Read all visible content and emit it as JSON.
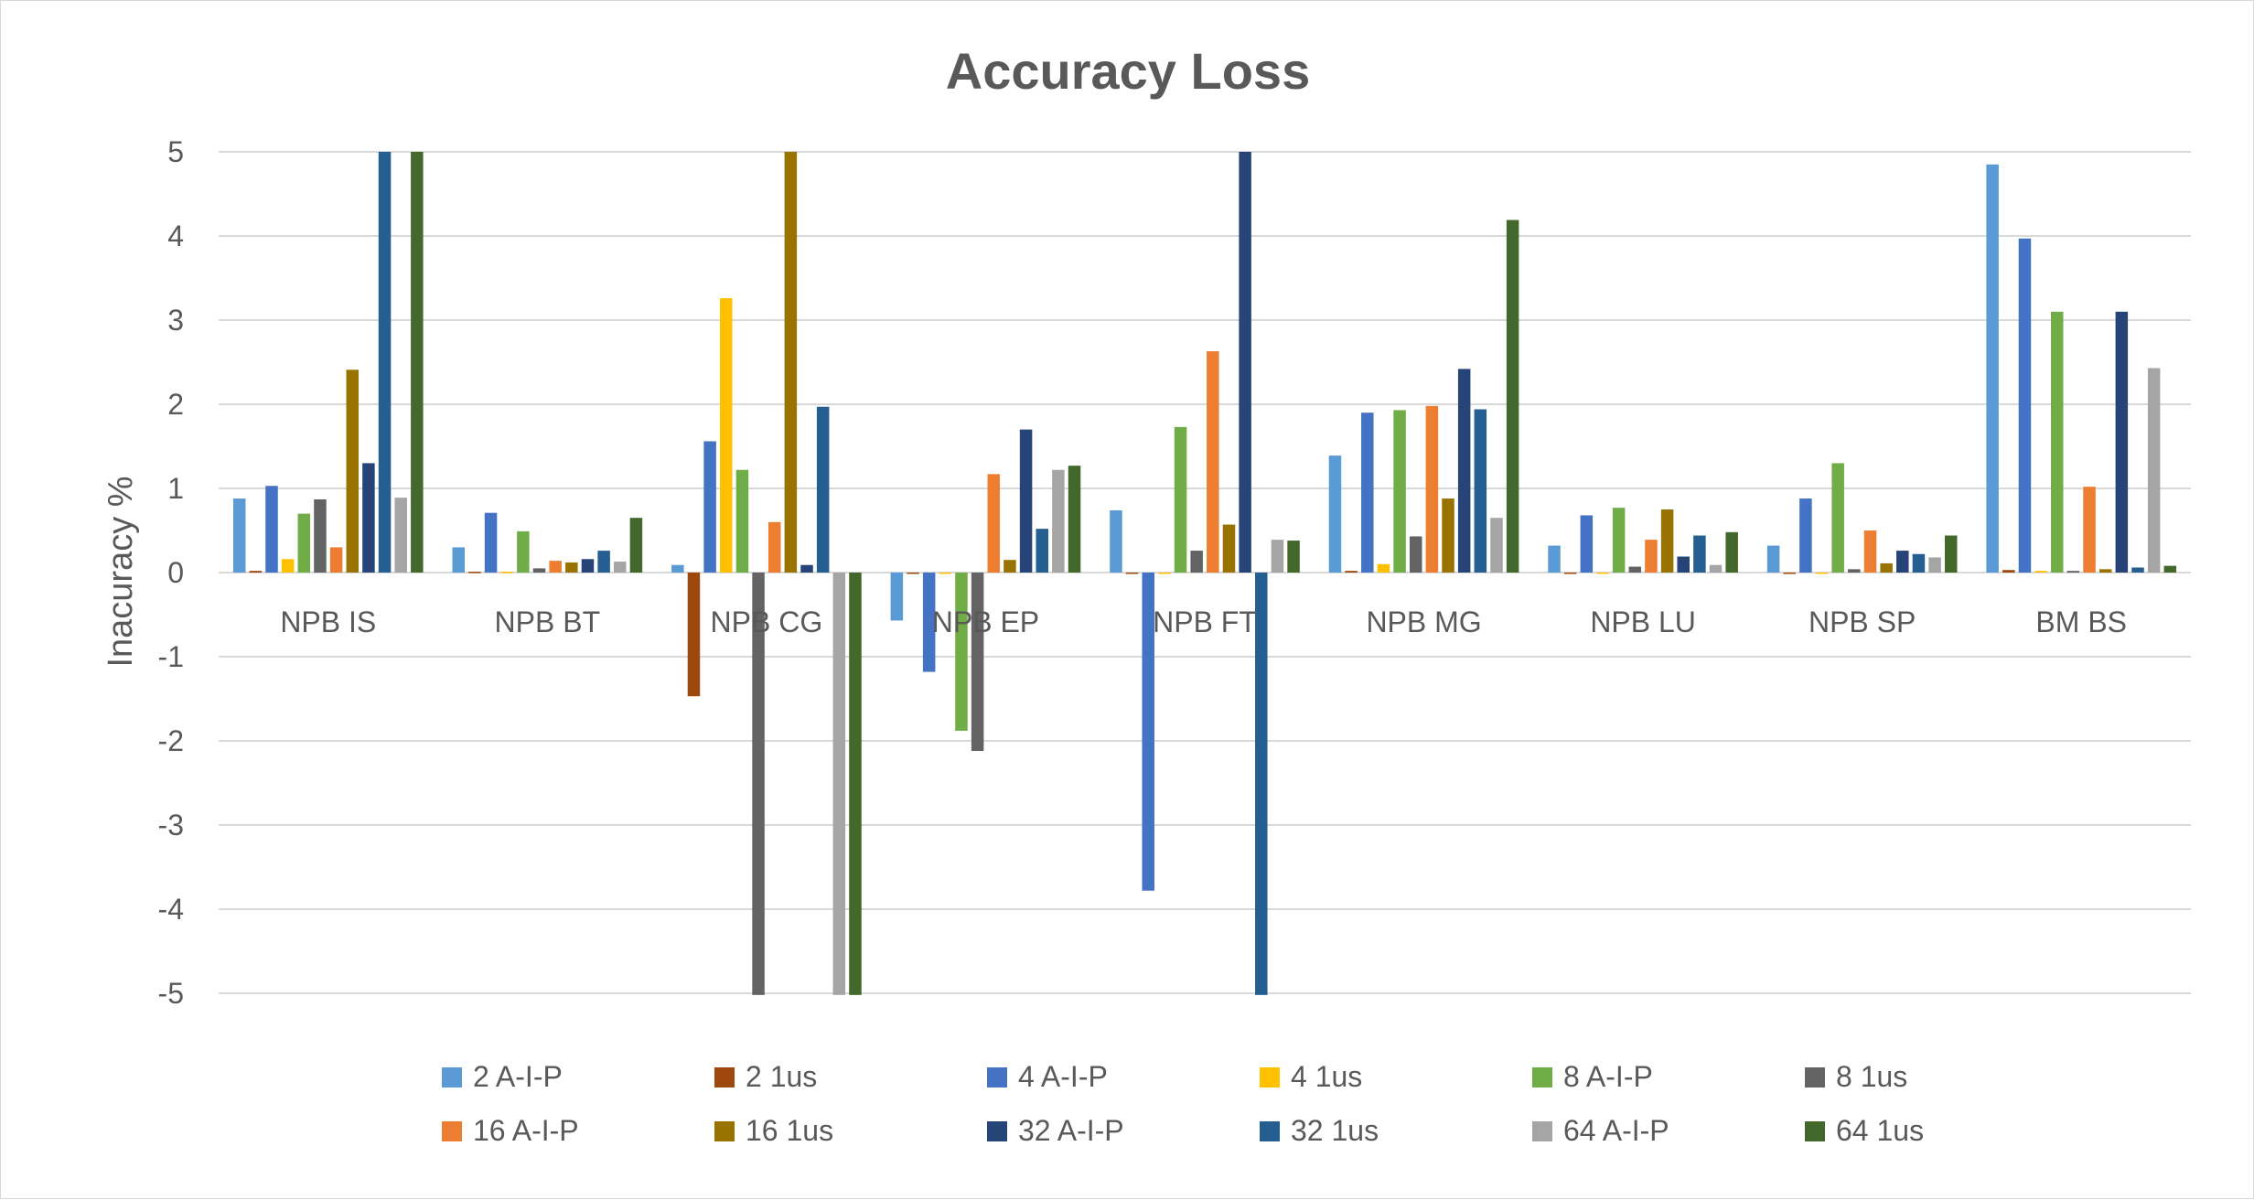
{
  "chart_data": {
    "type": "bar",
    "title": "Accuracy Loss",
    "xlabel": "",
    "ylabel": "Inacuracy %",
    "ylim": [
      -5,
      5
    ],
    "yticks": [
      "5",
      "4",
      "3",
      "2",
      "1",
      "0",
      "-1",
      "-2",
      "-3",
      "-4",
      "-5"
    ],
    "grid": true,
    "legend_position": "bottom",
    "categories": [
      "NPB IS",
      "NPB BT",
      "NPB CG",
      "NPB EP",
      "NPB FT",
      "NPB MG",
      "NPB LU",
      "NPB SP",
      "BM BS"
    ],
    "series": [
      {
        "name": "2 A-I-P",
        "color": "#5b9bd5",
        "values": [
          0.88,
          0.3,
          0.09,
          -0.57,
          0.74,
          1.39,
          0.32,
          0.32,
          4.85
        ]
      },
      {
        "name": "2 1us",
        "color": "#9e480e",
        "values": [
          0.02,
          0.01,
          -1.47,
          0.0,
          0.0,
          0.02,
          0.0,
          0.0,
          0.03
        ]
      },
      {
        "name": "4 A-I-P",
        "color": "#4472c4",
        "values": [
          1.03,
          0.71,
          1.56,
          -1.18,
          -3.78,
          1.9,
          0.68,
          0.88,
          3.97
        ]
      },
      {
        "name": "4 1us",
        "color": "#ffc000",
        "values": [
          0.16,
          0.01,
          3.26,
          0.0,
          0.0,
          0.1,
          0.0,
          0.0,
          0.02
        ]
      },
      {
        "name": "8 A-I-P",
        "color": "#70ad47",
        "values": [
          0.7,
          0.49,
          1.22,
          -1.88,
          1.73,
          1.93,
          0.77,
          1.3,
          3.1
        ]
      },
      {
        "name": "8 1us",
        "color": "#636363",
        "values": [
          0.87,
          0.05,
          -5.02,
          -2.12,
          0.26,
          0.43,
          0.07,
          0.04,
          0.02
        ]
      },
      {
        "name": "16 A-I-P",
        "color": "#ed7d31",
        "values": [
          0.3,
          0.14,
          0.6,
          1.17,
          2.63,
          1.98,
          0.39,
          0.5,
          1.02
        ]
      },
      {
        "name": "16 1us",
        "color": "#997300",
        "values": [
          2.41,
          0.12,
          5.0,
          0.15,
          0.57,
          0.88,
          0.75,
          0.11,
          0.04
        ]
      },
      {
        "name": "32 A-I-P",
        "color": "#264478",
        "values": [
          1.3,
          0.16,
          0.09,
          1.7,
          5.0,
          2.42,
          0.19,
          0.26,
          3.1
        ]
      },
      {
        "name": "32 1us",
        "color": "#255e91",
        "values": [
          5.0,
          0.26,
          1.97,
          0.52,
          -5.02,
          1.94,
          0.44,
          0.22,
          0.06
        ]
      },
      {
        "name": "64 A-I-P",
        "color": "#a5a5a5",
        "values": [
          0.89,
          0.13,
          -5.02,
          1.22,
          0.39,
          0.65,
          0.09,
          0.18,
          2.43
        ]
      },
      {
        "name": "64 1us",
        "color": "#43682b",
        "values": [
          5.0,
          0.65,
          -5.02,
          1.27,
          0.38,
          4.19,
          0.48,
          0.44,
          0.08
        ]
      }
    ]
  }
}
